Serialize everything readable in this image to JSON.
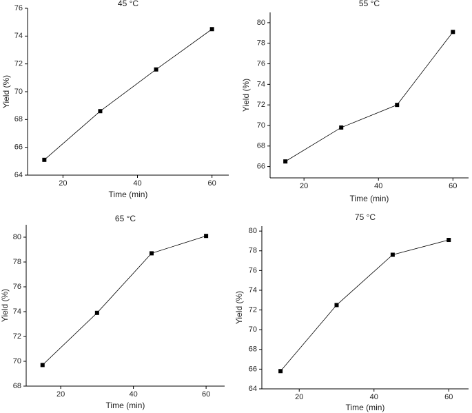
{
  "chart_data": [
    {
      "type": "line",
      "title": "45 °C",
      "x_label": "Time (min)",
      "y_label": "Yield (%)",
      "x": [
        15,
        30,
        45,
        60
      ],
      "values": [
        65.1,
        68.6,
        71.6,
        74.5
      ],
      "color": "#000000",
      "xlim": [
        10.5,
        64.5
      ],
      "xticks": [
        20,
        40,
        60
      ],
      "ylim": [
        64,
        76
      ],
      "yticks": [
        64,
        66,
        68,
        70,
        72,
        74,
        76
      ]
    },
    {
      "type": "line",
      "title": "55 °C",
      "x_label": "Time (min)",
      "y_label": "Yield (%)",
      "x": [
        15,
        30,
        45,
        60
      ],
      "values": [
        66.5,
        69.8,
        72.0,
        79.1
      ],
      "color": "#000000",
      "xlim": [
        10.9,
        64.2
      ],
      "xticks": [
        20,
        40,
        60
      ],
      "ylim": [
        64.9,
        81
      ],
      "yticks": [
        66,
        68,
        70,
        72,
        74,
        76,
        78,
        80
      ]
    },
    {
      "type": "line",
      "title": "65 °C",
      "x_label": "Time (min)",
      "y_label": "Yield (%)",
      "x": [
        15,
        30,
        45,
        60
      ],
      "values": [
        69.7,
        73.9,
        78.7,
        80.1
      ],
      "color": "#000000",
      "xlim": [
        10.5,
        65.1
      ],
      "xticks": [
        20,
        40,
        60
      ],
      "ylim": [
        68,
        81
      ],
      "yticks": [
        68,
        70,
        72,
        74,
        76,
        78,
        80
      ]
    },
    {
      "type": "line",
      "title": "75 °C",
      "x_label": "Time (min)",
      "y_label": "Yield (%)",
      "x": [
        15,
        30,
        45,
        60
      ],
      "values": [
        65.8,
        72.5,
        77.6,
        79.1
      ],
      "color": "#000000",
      "xlim": [
        10,
        65.3
      ],
      "xticks": [
        20,
        40,
        60
      ],
      "ylim": [
        64,
        80.5
      ],
      "yticks": [
        64,
        66,
        68,
        70,
        72,
        74,
        76,
        78,
        80
      ]
    }
  ]
}
